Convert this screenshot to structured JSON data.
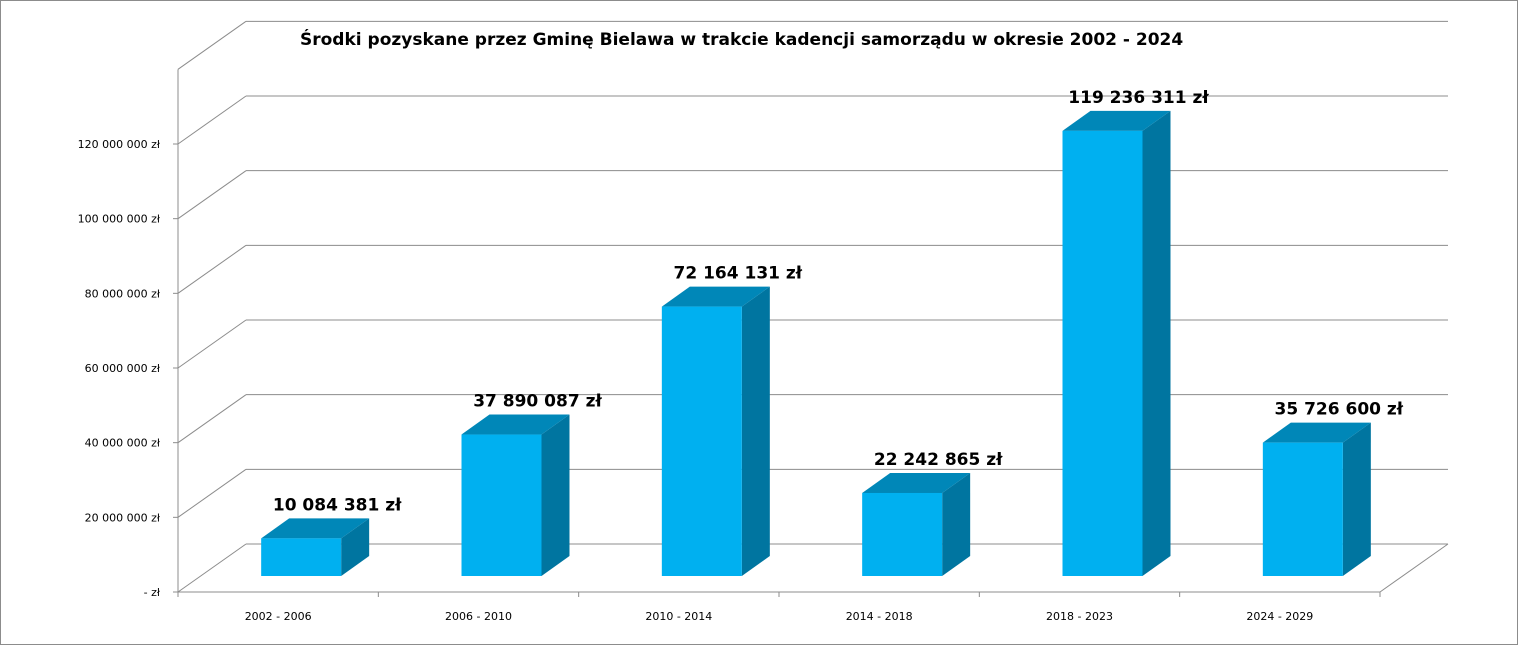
{
  "chart_data": {
    "type": "bar",
    "title": "Środki pozyskane  przez Gminę  Bielawa w trakcie kadencji samorządu  w okresie 2002 - 2024",
    "xlabel": "",
    "ylabel": "",
    "categories": [
      "2002 - 2006",
      "2006 - 2010",
      "2010 - 2014",
      "2014 - 2018",
      "2018 - 2023",
      "2024 - 2029"
    ],
    "values": [
      10084381,
      37890087,
      72164131,
      22242865,
      119236311,
      35726600
    ],
    "data_labels": [
      "10 084 381 zł",
      "37 890 087 zł",
      "72 164 131 zł",
      "22 242 865 zł",
      "119 236 311 zł",
      "35 726 600 zł"
    ],
    "ylim": [
      0,
      120000000
    ],
    "y_ticks": [
      0,
      20000000,
      40000000,
      60000000,
      80000000,
      100000000,
      120000000
    ],
    "y_tick_labels": [
      " -  zł",
      "20 000 000 zł",
      "40 000 000 zł",
      "60 000 000 zł",
      "80 000 000 zł",
      "100 000 000 zł",
      "120 000 000 zł"
    ],
    "grid": true,
    "legend": "none",
    "style": "3d-column",
    "colors": {
      "bar_front": "#00b0f0",
      "bar_side": "#0075a0",
      "bar_top": "#0087b8",
      "gridline": "#8c8c8c",
      "border": "#8c8c8c"
    }
  }
}
